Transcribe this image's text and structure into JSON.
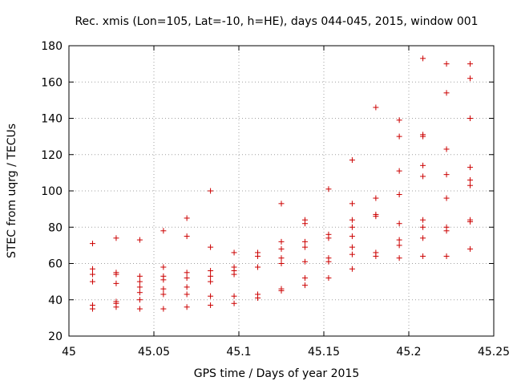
{
  "chart_data": {
    "type": "scatter",
    "title": "Rec. xmis (Lon=105, Lat=-10, h=HE), days 044-045, 2015, window 001",
    "xlabel": "GPS time / Days of year 2015",
    "ylabel": "STEC from uqrg / TECUs",
    "xlim": [
      45,
      45.25
    ],
    "ylim": [
      20,
      180
    ],
    "xticks": [
      "45",
      "45.05",
      "45.1",
      "45.15",
      "45.2",
      "45.25"
    ],
    "yticks": [
      "20",
      "40",
      "60",
      "80",
      "100",
      "120",
      "140",
      "160",
      "180"
    ],
    "grid": true,
    "marker": "plus",
    "color": "#cc0000",
    "points": [
      [
        45.0139,
        71
      ],
      [
        45.0139,
        57
      ],
      [
        45.0139,
        54
      ],
      [
        45.0139,
        50
      ],
      [
        45.0139,
        37
      ],
      [
        45.0139,
        35
      ],
      [
        45.0278,
        74
      ],
      [
        45.0278,
        55
      ],
      [
        45.0278,
        54
      ],
      [
        45.0278,
        49
      ],
      [
        45.0278,
        39
      ],
      [
        45.0278,
        38
      ],
      [
        45.0278,
        36
      ],
      [
        45.0417,
        73
      ],
      [
        45.0417,
        53
      ],
      [
        45.0417,
        50
      ],
      [
        45.0417,
        47
      ],
      [
        45.0417,
        44
      ],
      [
        45.0417,
        40
      ],
      [
        45.0417,
        35
      ],
      [
        45.0556,
        78
      ],
      [
        45.0556,
        58
      ],
      [
        45.0556,
        53
      ],
      [
        45.0556,
        51
      ],
      [
        45.0556,
        46
      ],
      [
        45.0556,
        43
      ],
      [
        45.0556,
        35
      ],
      [
        45.0694,
        85
      ],
      [
        45.0694,
        75
      ],
      [
        45.0694,
        55
      ],
      [
        45.0694,
        52
      ],
      [
        45.0694,
        47
      ],
      [
        45.0694,
        43
      ],
      [
        45.0694,
        36
      ],
      [
        45.0833,
        100
      ],
      [
        45.0833,
        69
      ],
      [
        45.0833,
        56
      ],
      [
        45.0833,
        53
      ],
      [
        45.0833,
        50
      ],
      [
        45.0833,
        42
      ],
      [
        45.0833,
        37
      ],
      [
        45.0972,
        66
      ],
      [
        45.0972,
        58
      ],
      [
        45.0972,
        56
      ],
      [
        45.0972,
        54
      ],
      [
        45.0972,
        42
      ],
      [
        45.0972,
        38
      ],
      [
        45.1111,
        66
      ],
      [
        45.1111,
        64
      ],
      [
        45.1111,
        58
      ],
      [
        45.1111,
        43
      ],
      [
        45.1111,
        41
      ],
      [
        45.125,
        93
      ],
      [
        45.125,
        72
      ],
      [
        45.125,
        68
      ],
      [
        45.125,
        63
      ],
      [
        45.125,
        60
      ],
      [
        45.125,
        46
      ],
      [
        45.125,
        45
      ],
      [
        45.1389,
        84
      ],
      [
        45.1389,
        82
      ],
      [
        45.1389,
        72
      ],
      [
        45.1389,
        69
      ],
      [
        45.1389,
        61
      ],
      [
        45.1389,
        52
      ],
      [
        45.1389,
        48
      ],
      [
        45.1528,
        101
      ],
      [
        45.1528,
        76
      ],
      [
        45.1528,
        74
      ],
      [
        45.1528,
        63
      ],
      [
        45.1528,
        61
      ],
      [
        45.1528,
        52
      ],
      [
        45.1667,
        117
      ],
      [
        45.1667,
        93
      ],
      [
        45.1667,
        84
      ],
      [
        45.1667,
        80
      ],
      [
        45.1667,
        75
      ],
      [
        45.1667,
        69
      ],
      [
        45.1667,
        65
      ],
      [
        45.1667,
        57
      ],
      [
        45.1806,
        146
      ],
      [
        45.1806,
        96
      ],
      [
        45.1806,
        87
      ],
      [
        45.1806,
        86
      ],
      [
        45.1806,
        66
      ],
      [
        45.1806,
        64
      ],
      [
        45.1944,
        139
      ],
      [
        45.1944,
        130
      ],
      [
        45.1944,
        111
      ],
      [
        45.1944,
        98
      ],
      [
        45.1944,
        82
      ],
      [
        45.1944,
        73
      ],
      [
        45.1944,
        70
      ],
      [
        45.1944,
        63
      ],
      [
        45.2083,
        173
      ],
      [
        45.2083,
        131
      ],
      [
        45.2083,
        130
      ],
      [
        45.2083,
        114
      ],
      [
        45.2083,
        108
      ],
      [
        45.2083,
        84
      ],
      [
        45.2083,
        80
      ],
      [
        45.2083,
        74
      ],
      [
        45.2083,
        64
      ],
      [
        45.2222,
        170
      ],
      [
        45.2222,
        154
      ],
      [
        45.2222,
        123
      ],
      [
        45.2222,
        109
      ],
      [
        45.2222,
        96
      ],
      [
        45.2222,
        80
      ],
      [
        45.2222,
        78
      ],
      [
        45.2222,
        64
      ],
      [
        45.2361,
        170
      ],
      [
        45.2361,
        162
      ],
      [
        45.2361,
        140
      ],
      [
        45.2361,
        113
      ],
      [
        45.2361,
        106
      ],
      [
        45.2361,
        103
      ],
      [
        45.2361,
        84
      ],
      [
        45.2361,
        83
      ],
      [
        45.2361,
        68
      ]
    ]
  }
}
